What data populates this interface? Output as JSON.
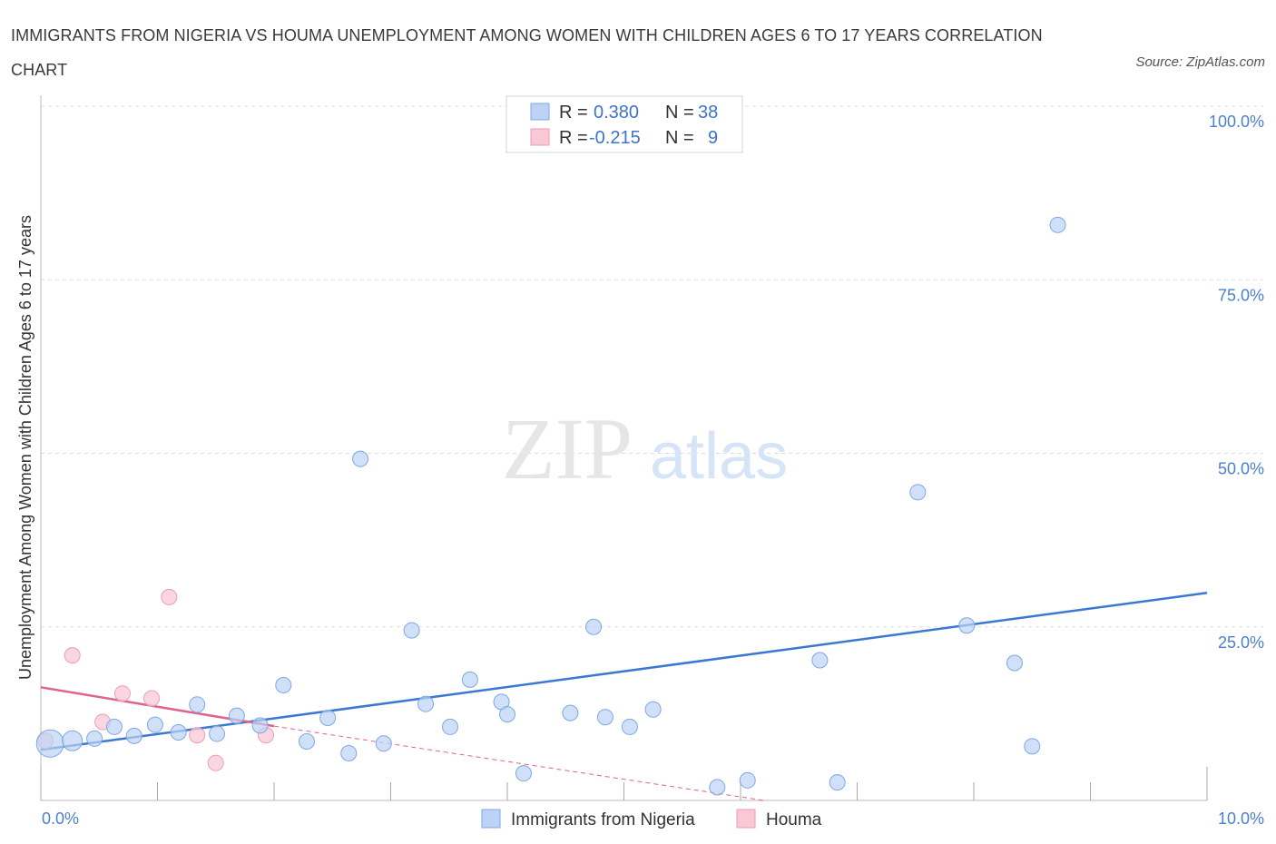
{
  "title": "IMMIGRANTS FROM NIGERIA VS HOUMA UNEMPLOYMENT AMONG WOMEN WITH CHILDREN AGES 6 TO 17 YEARS CORRELATION CHART",
  "source": "Source: ZipAtlas.com",
  "watermark": {
    "zip": "ZIP",
    "atlas": "atlas"
  },
  "legend": {
    "r_label": "R =",
    "n_label": "N =",
    "series": [
      {
        "r": "0.380",
        "n": "38"
      },
      {
        "r": "-0.215",
        "n": "9"
      }
    ]
  },
  "colors": {
    "nigeria_fill": "#bcd3f5",
    "nigeria_stroke": "#7ea8e3",
    "nigeria_line": "#3a78d4",
    "houma_fill": "#f9c8d6",
    "houma_stroke": "#ec9db6",
    "houma_line": "#e0638f",
    "grid": "#dcdcdc",
    "tick_text": "#4a7fd0"
  },
  "chart_data": {
    "type": "scatter",
    "title": "IMMIGRANTS FROM NIGERIA VS HOUMA UNEMPLOYMENT AMONG WOMEN WITH CHILDREN AGES 6 TO 17 YEARS CORRELATION CHART",
    "xlabel": "",
    "ylabel": "Unemployment Among Women with Children Ages 6 to 17 years",
    "xlim": [
      0,
      10
    ],
    "ylim": [
      0,
      100
    ],
    "x_tick_labels": [
      "0.0%",
      "10.0%"
    ],
    "y_tick_labels": [
      "100.0%",
      "75.0%",
      "50.0%",
      "25.0%"
    ],
    "y_tick_values": [
      100,
      75,
      50,
      25
    ],
    "series": [
      {
        "name": "Immigrants from Nigeria",
        "points": [
          {
            "x": 0.08,
            "y": 8.2,
            "s": 3
          },
          {
            "x": 0.27,
            "y": 8.6,
            "s": 2
          },
          {
            "x": 0.46,
            "y": 8.9,
            "s": 1
          },
          {
            "x": 0.63,
            "y": 10.6,
            "s": 1
          },
          {
            "x": 0.8,
            "y": 9.3,
            "s": 1
          },
          {
            "x": 0.98,
            "y": 10.9,
            "s": 1
          },
          {
            "x": 1.18,
            "y": 9.8,
            "s": 1
          },
          {
            "x": 1.34,
            "y": 13.8,
            "s": 1
          },
          {
            "x": 1.51,
            "y": 9.6,
            "s": 1
          },
          {
            "x": 1.68,
            "y": 12.2,
            "s": 1
          },
          {
            "x": 1.88,
            "y": 10.8,
            "s": 1
          },
          {
            "x": 2.08,
            "y": 16.6,
            "s": 1
          },
          {
            "x": 2.28,
            "y": 8.5,
            "s": 1
          },
          {
            "x": 2.46,
            "y": 11.9,
            "s": 1
          },
          {
            "x": 2.64,
            "y": 6.8,
            "s": 1
          },
          {
            "x": 2.74,
            "y": 49.2,
            "s": 1
          },
          {
            "x": 2.94,
            "y": 8.2,
            "s": 1
          },
          {
            "x": 3.18,
            "y": 24.5,
            "s": 1
          },
          {
            "x": 3.3,
            "y": 13.9,
            "s": 1
          },
          {
            "x": 3.51,
            "y": 10.6,
            "s": 1
          },
          {
            "x": 3.68,
            "y": 17.4,
            "s": 1
          },
          {
            "x": 3.95,
            "y": 14.2,
            "s": 1
          },
          {
            "x": 4.0,
            "y": 12.4,
            "s": 1
          },
          {
            "x": 4.14,
            "y": 3.9,
            "s": 1
          },
          {
            "x": 4.54,
            "y": 12.6,
            "s": 1
          },
          {
            "x": 4.74,
            "y": 25.0,
            "s": 1
          },
          {
            "x": 4.84,
            "y": 12.0,
            "s": 1
          },
          {
            "x": 5.05,
            "y": 10.6,
            "s": 1
          },
          {
            "x": 5.25,
            "y": 13.1,
            "s": 1
          },
          {
            "x": 5.8,
            "y": 1.9,
            "s": 1
          },
          {
            "x": 6.06,
            "y": 2.9,
            "s": 1
          },
          {
            "x": 6.68,
            "y": 20.2,
            "s": 1
          },
          {
            "x": 6.83,
            "y": 2.6,
            "s": 1
          },
          {
            "x": 7.52,
            "y": 44.4,
            "s": 1
          },
          {
            "x": 7.94,
            "y": 25.2,
            "s": 1
          },
          {
            "x": 8.35,
            "y": 19.8,
            "s": 1
          },
          {
            "x": 8.5,
            "y": 7.8,
            "s": 1
          },
          {
            "x": 8.72,
            "y": 82.9,
            "s": 1
          }
        ],
        "trend": {
          "x0": 0,
          "y0": 7.3,
          "x1": 10,
          "y1": 29.9
        }
      },
      {
        "name": "Houma",
        "points": [
          {
            "x": 0.04,
            "y": 8.6,
            "s": 1
          },
          {
            "x": 0.27,
            "y": 20.9,
            "s": 1
          },
          {
            "x": 0.53,
            "y": 11.3,
            "s": 1
          },
          {
            "x": 0.7,
            "y": 15.4,
            "s": 1
          },
          {
            "x": 0.95,
            "y": 14.7,
            "s": 1
          },
          {
            "x": 1.1,
            "y": 29.3,
            "s": 1
          },
          {
            "x": 1.34,
            "y": 9.4,
            "s": 1
          },
          {
            "x": 1.5,
            "y": 5.4,
            "s": 1
          },
          {
            "x": 1.93,
            "y": 9.4,
            "s": 1
          }
        ],
        "trend": {
          "x0": 0,
          "y0": 16.3,
          "x1": 2.0,
          "y1": 10.7
        },
        "trend_dashed": {
          "x0": 2.0,
          "y0": 10.7,
          "x1": 6.2,
          "y1": 0.0
        }
      }
    ]
  }
}
